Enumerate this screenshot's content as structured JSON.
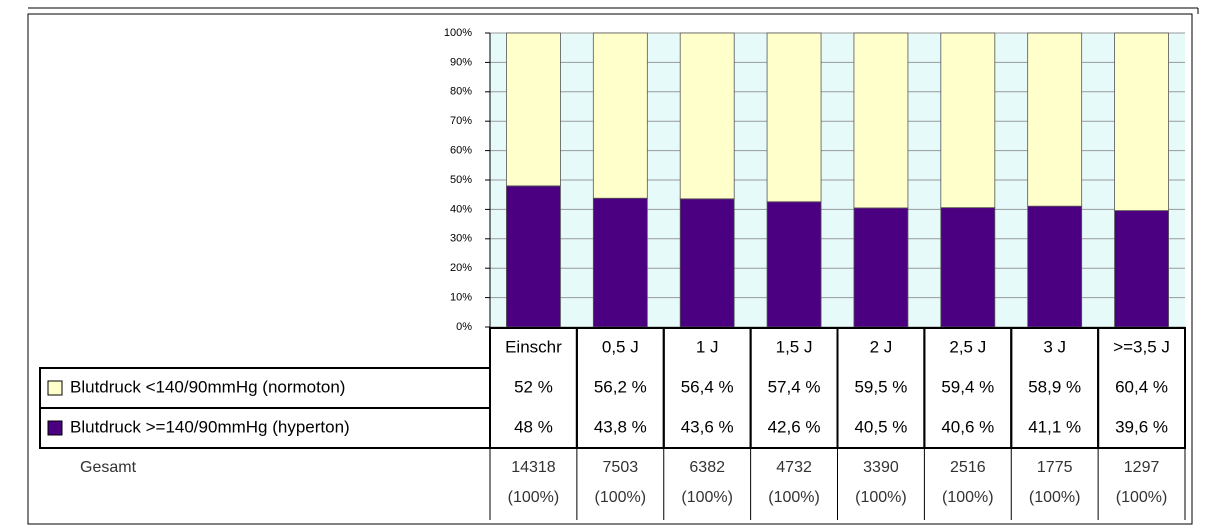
{
  "chart_data": {
    "type": "bar",
    "stacked": true,
    "grid": true,
    "categories": [
      "Einschr",
      "0,5 J",
      "1 J",
      "1,5 J",
      "2 J",
      "2,5 J",
      "3 J",
      ">=3,5 J"
    ],
    "series": [
      {
        "name": "Blutdruck <140/90mmHg (normoton)",
        "color": "#ffffcc",
        "values": [
          52,
          56.2,
          56.4,
          57.4,
          59.5,
          59.4,
          58.9,
          60.4
        ],
        "value_labels": [
          "52 %",
          "56,2 %",
          "56,4 %",
          "57,4 %",
          "59,5 %",
          "59,4 %",
          "58,9 %",
          "60,4 %"
        ]
      },
      {
        "name": "Blutdruck >=140/90mmHg (hyperton)",
        "color": "#4b0082",
        "values": [
          48,
          43.8,
          43.6,
          42.6,
          40.5,
          40.6,
          41.1,
          39.6
        ],
        "value_labels": [
          "48 %",
          "43,8 %",
          "43,6 %",
          "42,6 %",
          "40,5 %",
          "40,6 %",
          "41,1 %",
          "39,6 %"
        ]
      }
    ],
    "ylim": [
      0,
      100
    ],
    "yticks": [
      {
        "value": 0,
        "label": "0%"
      },
      {
        "value": 10,
        "label": "10%"
      },
      {
        "value": 20,
        "label": "20%"
      },
      {
        "value": 30,
        "label": "30%"
      },
      {
        "value": 40,
        "label": "40%"
      },
      {
        "value": 50,
        "label": "50%"
      },
      {
        "value": 60,
        "label": "60%"
      },
      {
        "value": 70,
        "label": "70%"
      },
      {
        "value": 80,
        "label": "80%"
      },
      {
        "value": 90,
        "label": "90%"
      },
      {
        "value": 100,
        "label": "100%"
      }
    ],
    "total": {
      "label": "Gesamt",
      "values": [
        14318,
        7503,
        6382,
        4732,
        3390,
        2516,
        1775,
        1297
      ],
      "shares": [
        "(100%)",
        "(100%)",
        "(100%)",
        "(100%)",
        "(100%)",
        "(100%)",
        "(100%)",
        "(100%)"
      ]
    }
  }
}
